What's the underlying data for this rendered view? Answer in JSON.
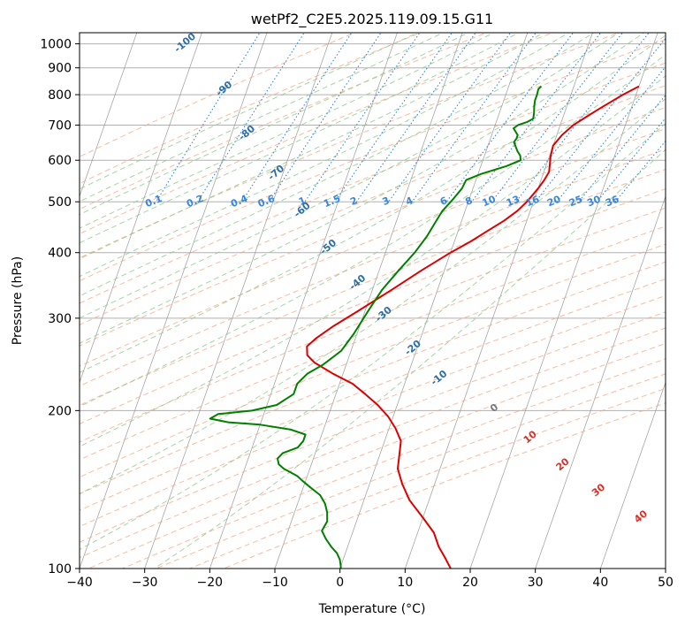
{
  "chart_data": {
    "type": "line",
    "title": "wetPf2_C2E5.2025.119.09.15.G11",
    "xlabel": "Temperature (°C)",
    "ylabel": "Pressure (hPa)",
    "xlim": [
      -40,
      50
    ],
    "ylim": [
      1050,
      100
    ],
    "y_scale": "log",
    "grid": true,
    "x_ticks": [
      -40,
      -30,
      -20,
      -10,
      0,
      10,
      20,
      30,
      40,
      50
    ],
    "y_ticks": [
      1000,
      900,
      800,
      700,
      600,
      500,
      400,
      300,
      200,
      100
    ],
    "series": [
      {
        "color": "#dd0000",
        "points": [
          [
            20.0,
            830
          ],
          [
            18.0,
            800
          ],
          [
            15.0,
            750
          ],
          [
            13.5,
            725
          ],
          [
            12.0,
            700
          ],
          [
            10.8,
            670
          ],
          [
            10.0,
            640
          ],
          [
            10.2,
            610
          ],
          [
            10.5,
            590
          ],
          [
            10.8,
            570
          ],
          [
            10.5,
            550
          ],
          [
            10.0,
            530
          ],
          [
            9.0,
            500
          ],
          [
            8.0,
            480
          ],
          [
            6.5,
            460
          ],
          [
            4.5,
            440
          ],
          [
            2.5,
            420
          ],
          [
            0.0,
            400
          ],
          [
            -3.5,
            370
          ],
          [
            -7.0,
            340
          ],
          [
            -11.0,
            310
          ],
          [
            -14.0,
            290
          ],
          [
            -16.0,
            275
          ],
          [
            -17.0,
            265
          ],
          [
            -16.5,
            255
          ],
          [
            -15.0,
            247
          ],
          [
            -11.5,
            235
          ],
          [
            -8.0,
            225
          ],
          [
            -5.5,
            215
          ],
          [
            -3.0,
            205
          ],
          [
            -0.8,
            195
          ],
          [
            1.0,
            185
          ],
          [
            2.5,
            175
          ],
          [
            3.0,
            165
          ],
          [
            3.5,
            155
          ],
          [
            5.0,
            145
          ],
          [
            7.0,
            135
          ],
          [
            10.0,
            125
          ],
          [
            12.5,
            117
          ],
          [
            14.0,
            110
          ],
          [
            15.5,
            105
          ],
          [
            17.0,
            100
          ]
        ]
      },
      {
        "color": "#008000",
        "points": [
          [
            5.0,
            830
          ],
          [
            4.7,
            820
          ],
          [
            4.8,
            800
          ],
          [
            4.8,
            780
          ],
          [
            5.0,
            760
          ],
          [
            5.3,
            740
          ],
          [
            5.5,
            720
          ],
          [
            4.8,
            710
          ],
          [
            3.5,
            700
          ],
          [
            3.0,
            690
          ],
          [
            3.5,
            680
          ],
          [
            4.0,
            670
          ],
          [
            4.0,
            660
          ],
          [
            3.8,
            650
          ],
          [
            4.2,
            640
          ],
          [
            4.8,
            625
          ],
          [
            5.5,
            612
          ],
          [
            5.8,
            600
          ],
          [
            4.0,
            585
          ],
          [
            0.5,
            565
          ],
          [
            -1.5,
            550
          ],
          [
            -1.7,
            530
          ],
          [
            -2.5,
            505
          ],
          [
            -3.5,
            480
          ],
          [
            -4.0,
            455
          ],
          [
            -4.5,
            430
          ],
          [
            -5.5,
            400
          ],
          [
            -7.0,
            370
          ],
          [
            -8.5,
            340
          ],
          [
            -9.5,
            310
          ],
          [
            -10.5,
            280
          ],
          [
            -11.5,
            260
          ],
          [
            -13.5,
            245
          ],
          [
            -15.5,
            235
          ],
          [
            -16.5,
            225
          ],
          [
            -16.5,
            215
          ],
          [
            -18.5,
            205
          ],
          [
            -22.0,
            200
          ],
          [
            -27.0,
            197
          ],
          [
            -28.0,
            193
          ],
          [
            -25.0,
            190
          ],
          [
            -20.0,
            188
          ],
          [
            -15.0,
            184
          ],
          [
            -12.5,
            180
          ],
          [
            -12.5,
            175
          ],
          [
            -13.0,
            170
          ],
          [
            -15.0,
            166
          ],
          [
            -15.5,
            162
          ],
          [
            -15.0,
            158
          ],
          [
            -14.0,
            155
          ],
          [
            -12.5,
            152
          ],
          [
            -11.5,
            150
          ],
          [
            -10.5,
            147
          ],
          [
            -9.0,
            143
          ],
          [
            -7.0,
            138
          ],
          [
            -5.8,
            133
          ],
          [
            -5.0,
            128
          ],
          [
            -4.5,
            123
          ],
          [
            -4.8,
            118
          ],
          [
            -3.8,
            114
          ],
          [
            -2.5,
            110
          ],
          [
            -1.3,
            107
          ],
          [
            -0.5,
            104
          ],
          [
            0.0,
            101
          ],
          [
            0.1,
            100
          ]
        ]
      }
    ],
    "dry_adiabat_labels": [
      "-100",
      "-90",
      "-80",
      "-70",
      "-60",
      "-50",
      "-40",
      "-30",
      "-20",
      "-10",
      "0",
      "10",
      "20",
      "30",
      "40"
    ],
    "mixing_ratio_labels": [
      "0.1",
      "0.2",
      "0.4",
      "0.6",
      "1",
      "1.5",
      "2",
      "3",
      "4",
      "6",
      "8",
      "10",
      "13",
      "16",
      "20",
      "25",
      "30",
      "36"
    ],
    "colors": {
      "temperature": "#dd0000",
      "dewpoint": "#008000",
      "dry_adiabat": "#f4a582",
      "moist_adiabat": "#8fc98f",
      "mixing_ratio": "#3a86d8",
      "isotherm": "#888888",
      "adiabat_label_cold": "#2c6fa8",
      "adiabat_label_warm": "#d73027",
      "adiabat_label_zero": "#777777"
    }
  }
}
